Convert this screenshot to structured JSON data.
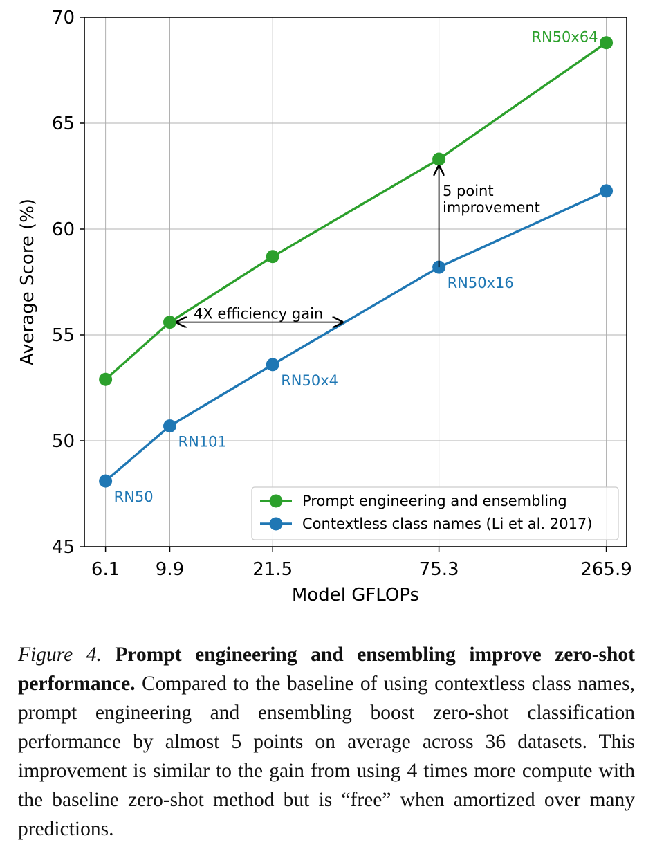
{
  "chart_data": {
    "type": "line",
    "xlabel": "Model GFLOPs",
    "ylabel": "Average Score (%)",
    "x_categories": [
      "6.1",
      "9.9",
      "21.5",
      "75.3",
      "265.9"
    ],
    "x_values": [
      6.1,
      9.9,
      21.5,
      75.3,
      265.9
    ],
    "x_scale": "log",
    "ylim": [
      45,
      70
    ],
    "yticks": [
      "45",
      "50",
      "55",
      "60",
      "65",
      "70"
    ],
    "grid": true,
    "legend_position": "lower-right",
    "series": [
      {
        "name": "Prompt engineering and ensembling",
        "color": "#2ca02c",
        "values": [
          52.9,
          55.6,
          58.7,
          63.3,
          68.8
        ],
        "point_labels": [
          "",
          "",
          "",
          "",
          "RN50x64"
        ]
      },
      {
        "name": "Contextless class names (Li et al. 2017)",
        "color": "#1f77b4",
        "values": [
          48.1,
          50.7,
          53.6,
          58.2,
          61.8
        ],
        "point_labels": [
          "RN50",
          "RN101",
          "RN50x4",
          "RN50x16",
          ""
        ]
      }
    ],
    "annotations": {
      "efficiency": "4X efficiency gain",
      "improvement_line1": "5 point",
      "improvement_line2": "improvement"
    }
  },
  "caption": {
    "label": "Figure 4.",
    "bold": "Prompt engineering and ensembling improve zero-shot performance.",
    "body": "Compared to the baseline of using contextless class names, prompt engineering and ensembling boost zero-shot classification performance by almost 5 points on average across 36 datasets. This improvement is similar to the gain from using 4 times more compute with the baseline zero-shot method but is “free” when amortized over many predictions."
  }
}
